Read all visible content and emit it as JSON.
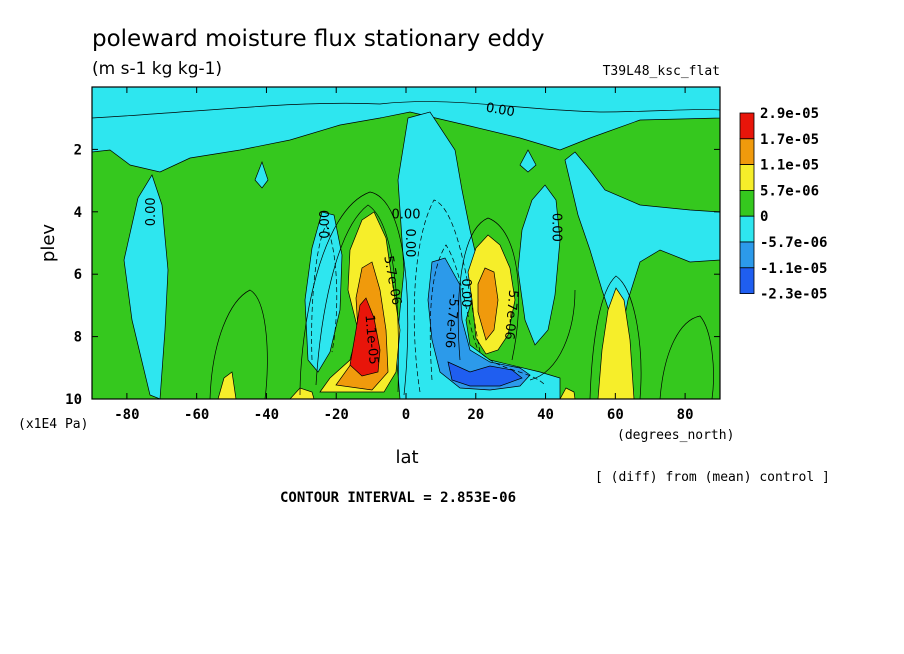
{
  "chart_data": {
    "type": "contour",
    "title": "poleward moisture flux stationary eddy",
    "units": "(m s-1 kg kg-1)",
    "run_label": "T39L48_ksc_flat",
    "xlabel": "lat",
    "x_unit_label": "(degrees_north)",
    "ylabel": "plev",
    "y_unit_label": "(x1E4 Pa)",
    "xlim": [
      -90,
      90
    ],
    "ylim": [
      10,
      0
    ],
    "x_ticks": [
      -80,
      -60,
      -40,
      -20,
      0,
      20,
      40,
      60,
      80
    ],
    "x_tick_labels": [
      "-80",
      "-60",
      "-40",
      "-20",
      "0",
      "20",
      "40",
      "60",
      "80"
    ],
    "y_ticks": [
      2,
      4,
      6,
      8,
      10
    ],
    "y_tick_labels": [
      "2",
      "4",
      "6",
      "8",
      "10"
    ],
    "note": "[ (diff) from (mean) control ]",
    "contour_interval_text": "CONTOUR INTERVAL = 2.853E-06",
    "legend": {
      "placement": "right",
      "levels": [
        "2.9e-05",
        "1.7e-05",
        "1.1e-05",
        "5.7e-06",
        "0",
        "-5.7e-06",
        "-1.1e-05",
        "-2.3e-05"
      ],
      "colors": [
        "#e8150a",
        "#f09a0c",
        "#f6ee2a",
        "#35c81e",
        "#2ee6ef",
        "#2c9aea",
        "#1f5ef0"
      ]
    },
    "fill_colors": {
      "background": "#35c81e",
      "cyan": "#2ee6ef",
      "mid_blue": "#2c9aea",
      "dark_blue": "#1f5ef0",
      "yellow": "#f6ee2a",
      "orange": "#f09a0c",
      "red": "#e8150a"
    },
    "contour_labels": [
      {
        "text": "0.00",
        "lat": -73,
        "plev": 4.0,
        "angle": -90
      },
      {
        "text": "0.00",
        "lat": -23,
        "plev": 4.4,
        "angle": -90
      },
      {
        "text": "0.00",
        "lat": 0,
        "plev": 4.1,
        "angle": 0
      },
      {
        "text": "0.00",
        "lat": 1,
        "plev": 5.0,
        "angle": 90
      },
      {
        "text": "0.00",
        "lat": 27,
        "plev": 0.75,
        "angle": 10
      },
      {
        "text": "0.00",
        "lat": 43,
        "plev": 4.5,
        "angle": 90
      },
      {
        "text": "0.00",
        "lat": 17,
        "plev": 6.6,
        "angle": 90
      },
      {
        "text": "5.7e-06",
        "lat": -4,
        "plev": 6.2,
        "angle": 80
      },
      {
        "text": "1.1e-05",
        "lat": -10,
        "plev": 8.1,
        "angle": 85
      },
      {
        "text": "5.7e-06",
        "lat": 30,
        "plev": 7.3,
        "angle": 95
      },
      {
        "text": "-5.7e-06",
        "lat": 13,
        "plev": 7.5,
        "angle": 95
      }
    ]
  }
}
